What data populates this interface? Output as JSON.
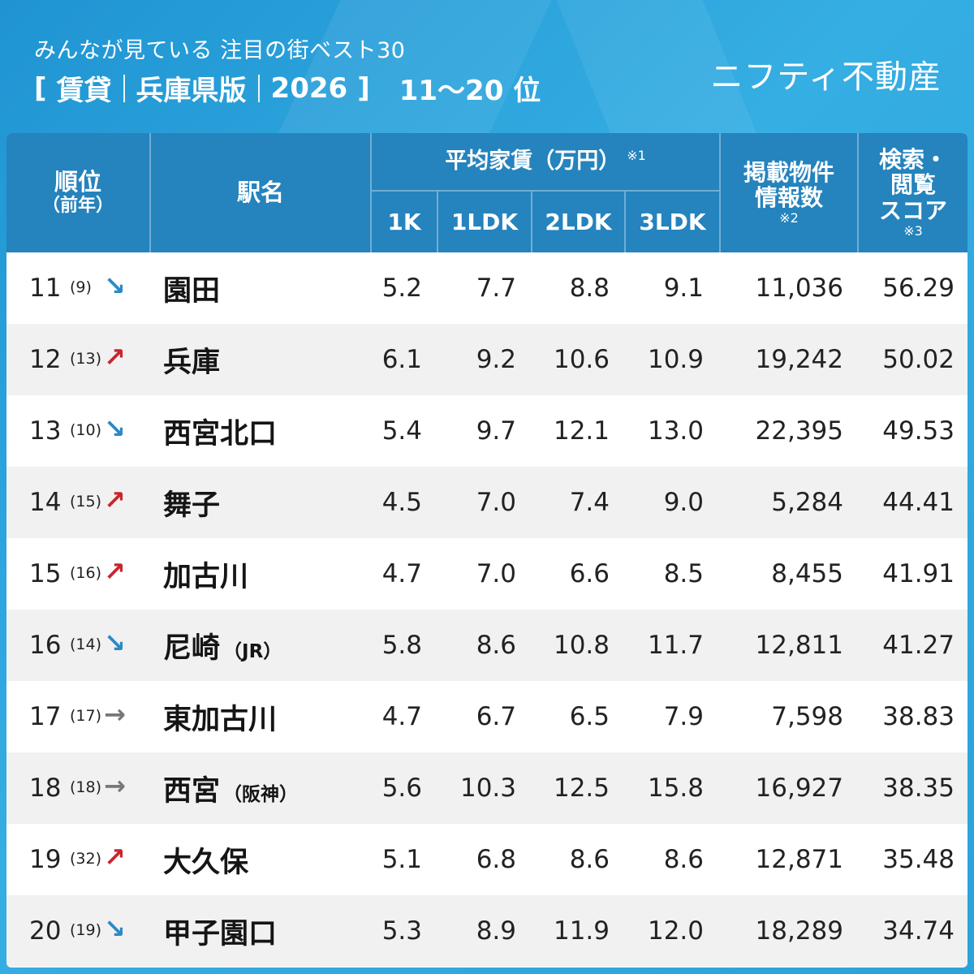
{
  "header": {
    "subtitle": "みんなが見ている 注目の街ベスト30",
    "bracket_open": "[",
    "category": "賃貸",
    "region": "兵庫県版",
    "year": "2026",
    "bracket_close": "]",
    "rank_range": "11～20 位",
    "logo": "ニフティ不動産"
  },
  "columns": {
    "rank": "順位",
    "rank_prev": "（前年）",
    "station": "駅名",
    "avg_rent": "平均家賃（万円）",
    "avg_rent_note": "※1",
    "sub_1k": "1K",
    "sub_1ldk": "1LDK",
    "sub_2ldk": "2LDK",
    "sub_3ldk": "3LDK",
    "listings_line1": "掲載物件",
    "listings_line2": "情報数",
    "listings_note": "※2",
    "score_line1": "検索・",
    "score_line2": "閲覧",
    "score_line3": "スコア",
    "score_note": "※3"
  },
  "trend_symbols": {
    "down": "↘",
    "up": "↗",
    "flat": "→"
  },
  "rows": [
    {
      "rank": "11",
      "prev": "(9)",
      "trend": "down",
      "station": "園田",
      "suffix": "",
      "r1k": "5.2",
      "r1ldk": "7.7",
      "r2ldk": "8.8",
      "r3ldk": "9.1",
      "listings": "11,036",
      "score": "56.29"
    },
    {
      "rank": "12",
      "prev": "(13)",
      "trend": "up",
      "station": "兵庫",
      "suffix": "",
      "r1k": "6.1",
      "r1ldk": "9.2",
      "r2ldk": "10.6",
      "r3ldk": "10.9",
      "listings": "19,242",
      "score": "50.02"
    },
    {
      "rank": "13",
      "prev": "(10)",
      "trend": "down",
      "station": "西宮北口",
      "suffix": "",
      "r1k": "5.4",
      "r1ldk": "9.7",
      "r2ldk": "12.1",
      "r3ldk": "13.0",
      "listings": "22,395",
      "score": "49.53"
    },
    {
      "rank": "14",
      "prev": "(15)",
      "trend": "up",
      "station": "舞子",
      "suffix": "",
      "r1k": "4.5",
      "r1ldk": "7.0",
      "r2ldk": "7.4",
      "r3ldk": "9.0",
      "listings": "5,284",
      "score": "44.41"
    },
    {
      "rank": "15",
      "prev": "(16)",
      "trend": "up",
      "station": "加古川",
      "suffix": "",
      "r1k": "4.7",
      "r1ldk": "7.0",
      "r2ldk": "6.6",
      "r3ldk": "8.5",
      "listings": "8,455",
      "score": "41.91"
    },
    {
      "rank": "16",
      "prev": "(14)",
      "trend": "down",
      "station": "尼崎",
      "suffix": "（JR）",
      "r1k": "5.8",
      "r1ldk": "8.6",
      "r2ldk": "10.8",
      "r3ldk": "11.7",
      "listings": "12,811",
      "score": "41.27"
    },
    {
      "rank": "17",
      "prev": "(17)",
      "trend": "flat",
      "station": "東加古川",
      "suffix": "",
      "r1k": "4.7",
      "r1ldk": "6.7",
      "r2ldk": "6.5",
      "r3ldk": "7.9",
      "listings": "7,598",
      "score": "38.83"
    },
    {
      "rank": "18",
      "prev": "(18)",
      "trend": "flat",
      "station": "西宮",
      "suffix": "（阪神）",
      "r1k": "5.6",
      "r1ldk": "10.3",
      "r2ldk": "12.5",
      "r3ldk": "15.8",
      "listings": "16,927",
      "score": "38.35"
    },
    {
      "rank": "19",
      "prev": "(32)",
      "trend": "up",
      "station": "大久保",
      "suffix": "",
      "r1k": "5.1",
      "r1ldk": "6.8",
      "r2ldk": "8.6",
      "r3ldk": "8.6",
      "listings": "12,871",
      "score": "35.48"
    },
    {
      "rank": "20",
      "prev": "(19)",
      "trend": "down",
      "station": "甲子園口",
      "suffix": "",
      "r1k": "5.3",
      "r1ldk": "8.9",
      "r2ldk": "11.9",
      "r3ldk": "12.0",
      "listings": "18,289",
      "score": "34.74"
    }
  ]
}
